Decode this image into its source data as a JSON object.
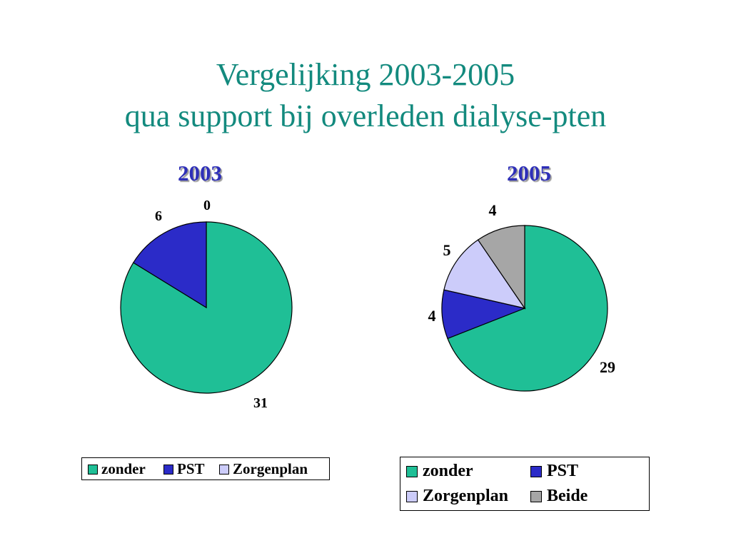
{
  "header": {
    "line1": "Vergelijking 2003-2005",
    "line2": "qua support bij overleden dialyse-pten"
  },
  "colors": {
    "title": "#138a7e",
    "year": "#2e2fb8",
    "zonder": "#1fbf96",
    "PST": "#2b2bc8",
    "Zorgenplan": "#ccccfa",
    "Beide": "#a6a6a6"
  },
  "chart_data": [
    {
      "type": "pie",
      "title": "2003",
      "categories": [
        "zonder",
        "PST",
        "Zorgenplan"
      ],
      "values": [
        31,
        6,
        0
      ],
      "legend": "bottom"
    },
    {
      "type": "pie",
      "title": "2005",
      "categories": [
        "zonder",
        "PST",
        "Zorgenplan",
        "Beide"
      ],
      "values": [
        29,
        4,
        5,
        4
      ],
      "legend": "bottom"
    }
  ]
}
